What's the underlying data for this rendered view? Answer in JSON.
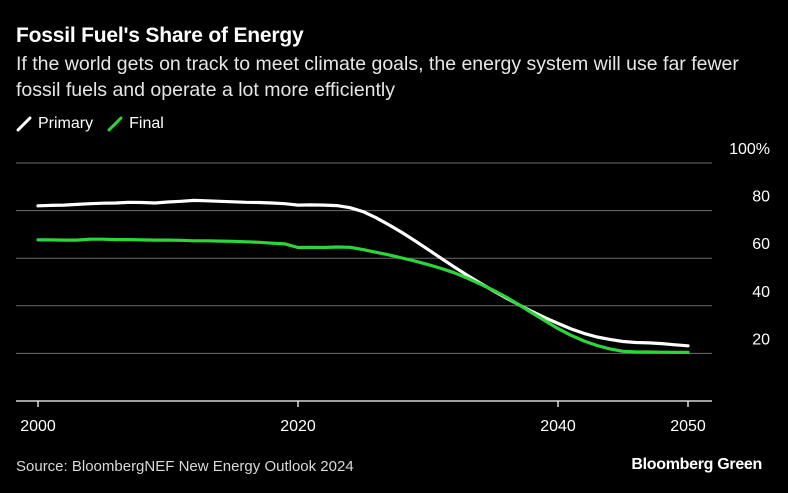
{
  "header": {
    "title": "Fossil Fuel's Share of Energy",
    "subtitle": "If the world gets on track to meet climate goals, the energy system will use far fewer fossil fuels and operate a lot more efficiently"
  },
  "footer": {
    "source": "Source: BloombergNEF New Energy Outlook 2024",
    "brand": "Bloomberg Green"
  },
  "colors": {
    "background": "#000000",
    "primary": "#ffffff",
    "final": "#2bd63a",
    "grid": "#6b6b6b"
  },
  "chart_data": {
    "type": "line",
    "title": "Fossil Fuel's Share of Energy",
    "xlabel": "",
    "ylabel": "",
    "xlim": [
      2000,
      2050
    ],
    "ylim": [
      0,
      100
    ],
    "xticks": [
      2000,
      2020,
      2040,
      2050
    ],
    "yticks": [
      20,
      40,
      60,
      80,
      100
    ],
    "ytick_labels": [
      "20",
      "40",
      "60",
      "80",
      "100%"
    ],
    "grid": true,
    "legend_position": "top-left",
    "x": [
      2000,
      2001,
      2002,
      2003,
      2004,
      2005,
      2006,
      2007,
      2008,
      2009,
      2010,
      2011,
      2012,
      2013,
      2014,
      2015,
      2016,
      2017,
      2018,
      2019,
      2020,
      2021,
      2022,
      2023,
      2024,
      2025,
      2026,
      2027,
      2028,
      2029,
      2030,
      2031,
      2032,
      2033,
      2034,
      2035,
      2036,
      2037,
      2038,
      2039,
      2040,
      2041,
      2042,
      2043,
      2044,
      2045,
      2046,
      2047,
      2048,
      2049,
      2050
    ],
    "series": [
      {
        "name": "Primary",
        "color": "#ffffff",
        "values": [
          82.0,
          82.2,
          82.3,
          82.6,
          82.9,
          83.1,
          83.2,
          83.5,
          83.4,
          83.2,
          83.6,
          83.9,
          84.3,
          84.1,
          83.9,
          83.7,
          83.5,
          83.4,
          83.2,
          82.9,
          82.3,
          82.4,
          82.3,
          82.1,
          81.2,
          79.6,
          77.0,
          74.0,
          70.8,
          67.3,
          63.7,
          60.0,
          56.4,
          52.9,
          49.6,
          46.4,
          43.3,
          40.4,
          37.6,
          35.0,
          32.6,
          30.3,
          28.4,
          26.9,
          25.9,
          25.0,
          24.6,
          24.4,
          24.1,
          23.6,
          23.2
        ]
      },
      {
        "name": "Final",
        "color": "#2bd63a",
        "values": [
          67.7,
          67.7,
          67.6,
          67.6,
          68.0,
          68.0,
          67.8,
          67.8,
          67.7,
          67.6,
          67.6,
          67.5,
          67.3,
          67.3,
          67.2,
          67.1,
          66.9,
          66.7,
          66.3,
          66.0,
          64.5,
          64.6,
          64.5,
          64.7,
          64.6,
          63.6,
          62.5,
          61.4,
          60.1,
          58.8,
          57.3,
          55.7,
          53.9,
          51.7,
          49.2,
          46.6,
          43.7,
          40.4,
          37.0,
          33.7,
          30.4,
          27.6,
          25.2,
          23.3,
          21.9,
          20.9,
          20.6,
          20.6,
          20.5,
          20.4,
          20.4
        ]
      }
    ]
  }
}
